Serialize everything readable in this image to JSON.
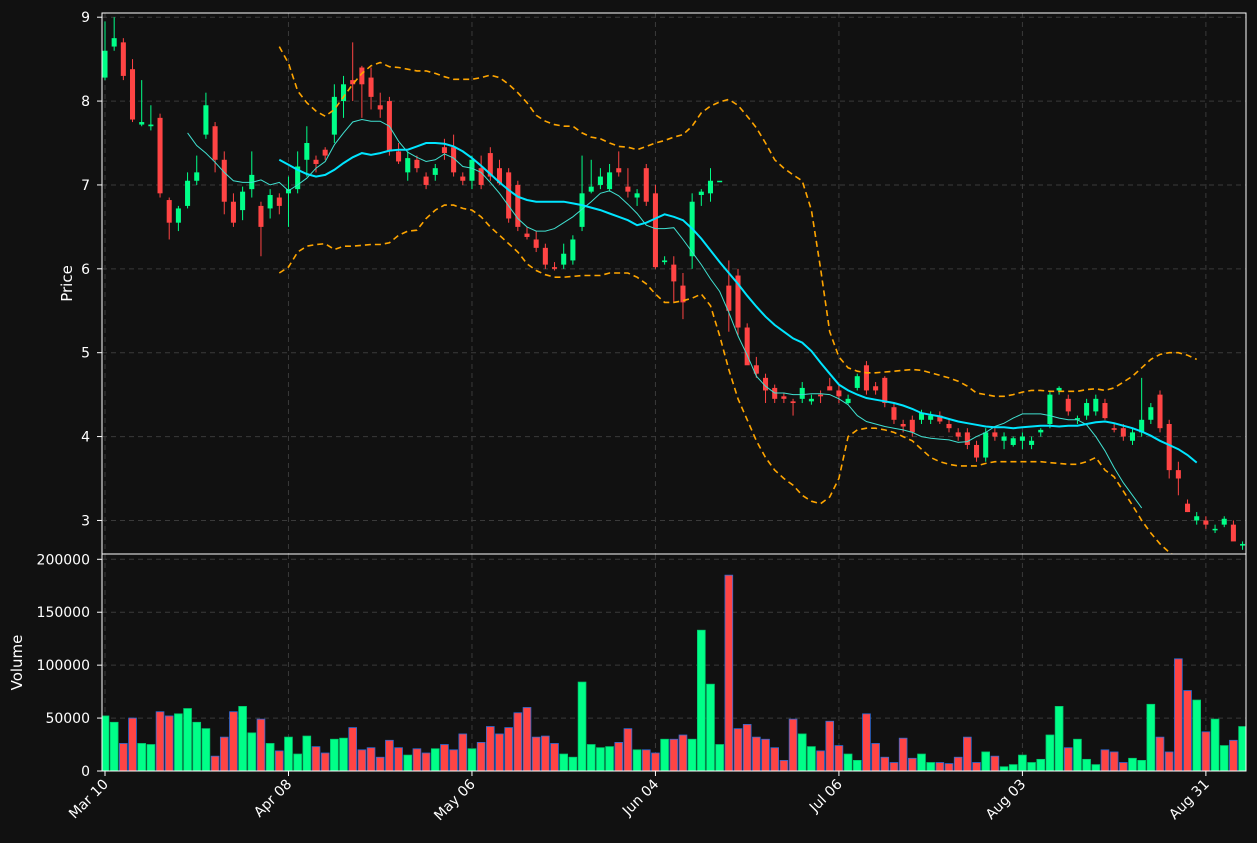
{
  "chart_data": {
    "type": "candlestick",
    "background": "#111111",
    "colors": {
      "up": "#00ff88",
      "down": "#ff4444",
      "ma_short": "#40e0d0",
      "ma_long": "#00e5ff",
      "bands": "#ffa500"
    },
    "grid": true,
    "price_panel": {
      "ylabel": "Price",
      "ylim": [
        2.6,
        9.05
      ],
      "yticks": [
        3,
        4,
        5,
        6,
        7,
        8,
        9
      ]
    },
    "volume_panel": {
      "ylabel": "Volume",
      "ylim": [
        0,
        205000
      ],
      "yticks": [
        0,
        50000,
        100000,
        150000,
        200000
      ]
    },
    "xticks": [
      {
        "label": "Mar 10",
        "index": 0
      },
      {
        "label": "Apr 08",
        "index": 20
      },
      {
        "label": "May 06",
        "index": 40
      },
      {
        "label": "Jun 04",
        "index": 60
      },
      {
        "label": "Jul 06",
        "index": 80
      },
      {
        "label": "Aug 03",
        "index": 100
      },
      {
        "label": "Aug 31",
        "index": 120
      }
    ],
    "ohlc": [
      [
        8.28,
        8.95,
        8.25,
        8.6
      ],
      [
        8.65,
        9.0,
        8.6,
        8.75
      ],
      [
        8.7,
        8.75,
        8.25,
        8.3
      ],
      [
        8.38,
        8.5,
        7.75,
        7.78
      ],
      [
        7.72,
        8.25,
        7.7,
        7.75
      ],
      [
        7.7,
        7.95,
        7.65,
        7.72
      ],
      [
        7.8,
        7.85,
        6.85,
        6.9
      ],
      [
        6.82,
        6.85,
        6.35,
        6.55
      ],
      [
        6.55,
        6.75,
        6.45,
        6.72
      ],
      [
        6.75,
        7.15,
        6.72,
        7.05
      ],
      [
        7.05,
        7.35,
        7.0,
        7.15
      ],
      [
        7.6,
        8.1,
        7.55,
        7.95
      ],
      [
        7.7,
        7.75,
        7.15,
        7.3
      ],
      [
        7.3,
        7.4,
        6.65,
        6.8
      ],
      [
        6.8,
        6.9,
        6.5,
        6.55
      ],
      [
        6.7,
        6.98,
        6.58,
        6.92
      ],
      [
        6.95,
        7.4,
        6.85,
        7.12
      ],
      [
        6.75,
        6.8,
        6.15,
        6.5
      ],
      [
        6.72,
        6.95,
        6.6,
        6.88
      ],
      [
        6.85,
        6.9,
        6.65,
        6.75
      ],
      [
        6.9,
        7.1,
        6.5,
        6.95
      ],
      [
        6.95,
        7.4,
        6.9,
        7.22
      ],
      [
        7.3,
        7.7,
        7.1,
        7.5
      ],
      [
        7.3,
        7.35,
        7.15,
        7.25
      ],
      [
        7.42,
        7.45,
        7.3,
        7.35
      ],
      [
        7.6,
        8.2,
        7.5,
        8.05
      ],
      [
        8.0,
        8.3,
        7.8,
        8.2
      ],
      [
        8.25,
        8.7,
        8.0,
        8.2
      ],
      [
        8.4,
        8.42,
        7.8,
        8.2
      ],
      [
        8.28,
        8.4,
        7.9,
        8.05
      ],
      [
        7.95,
        8.1,
        7.8,
        7.9
      ],
      [
        8.0,
        8.05,
        7.35,
        7.4
      ],
      [
        7.4,
        7.5,
        7.25,
        7.28
      ],
      [
        7.15,
        7.4,
        7.05,
        7.32
      ],
      [
        7.3,
        7.35,
        7.15,
        7.2
      ],
      [
        7.1,
        7.15,
        6.95,
        7.0
      ],
      [
        7.12,
        7.25,
        7.05,
        7.2
      ],
      [
        7.45,
        7.55,
        7.3,
        7.38
      ],
      [
        7.45,
        7.6,
        7.1,
        7.15
      ],
      [
        7.1,
        7.15,
        7.0,
        7.05
      ],
      [
        7.05,
        7.35,
        6.95,
        7.3
      ],
      [
        7.2,
        7.35,
        6.95,
        7.0
      ],
      [
        7.38,
        7.45,
        7.05,
        7.1
      ],
      [
        7.2,
        7.3,
        7.0,
        7.02
      ],
      [
        7.15,
        7.2,
        6.55,
        6.6
      ],
      [
        7.0,
        7.05,
        6.45,
        6.5
      ],
      [
        6.42,
        6.5,
        6.35,
        6.38
      ],
      [
        6.35,
        6.45,
        6.2,
        6.25
      ],
      [
        6.25,
        6.3,
        6.0,
        6.05
      ],
      [
        6.02,
        6.08,
        5.98,
        6.0
      ],
      [
        6.05,
        6.3,
        6.0,
        6.18
      ],
      [
        6.1,
        6.4,
        6.05,
        6.35
      ],
      [
        6.5,
        7.35,
        6.45,
        6.9
      ],
      [
        6.92,
        7.3,
        6.9,
        6.98
      ],
      [
        7.0,
        7.2,
        6.95,
        7.1
      ],
      [
        6.95,
        7.25,
        6.92,
        7.15
      ],
      [
        7.2,
        7.4,
        7.1,
        7.15
      ],
      [
        6.98,
        7.2,
        6.85,
        6.92
      ],
      [
        6.85,
        6.95,
        6.75,
        6.9
      ],
      [
        7.2,
        7.25,
        6.75,
        6.8
      ],
      [
        6.9,
        7.0,
        6.0,
        6.02
      ],
      [
        6.08,
        6.15,
        6.05,
        6.1
      ],
      [
        6.05,
        6.15,
        5.6,
        5.85
      ],
      [
        5.8,
        5.95,
        5.4,
        5.6
      ],
      [
        6.15,
        6.9,
        6.0,
        6.8
      ],
      [
        6.88,
        6.95,
        6.75,
        6.92
      ],
      [
        6.9,
        7.2,
        6.8,
        7.05
      ],
      [
        7.05,
        7.05,
        7.05,
        7.05
      ],
      [
        5.8,
        6.1,
        5.25,
        5.5
      ],
      [
        5.92,
        6.0,
        5.2,
        5.3
      ],
      [
        5.3,
        5.35,
        4.9,
        4.85
      ],
      [
        4.85,
        4.95,
        4.7,
        4.75
      ],
      [
        4.7,
        4.75,
        4.4,
        4.55
      ],
      [
        4.58,
        4.62,
        4.4,
        4.45
      ],
      [
        4.48,
        4.52,
        4.4,
        4.45
      ],
      [
        4.42,
        4.45,
        4.25,
        4.4
      ],
      [
        4.45,
        4.65,
        4.4,
        4.58
      ],
      [
        4.42,
        4.5,
        4.38,
        4.45
      ],
      [
        4.5,
        4.55,
        4.4,
        4.48
      ],
      [
        4.6,
        4.7,
        4.55,
        4.55
      ],
      [
        4.55,
        4.62,
        4.4,
        4.48
      ],
      [
        4.4,
        4.5,
        4.38,
        4.45
      ],
      [
        4.58,
        4.75,
        4.55,
        4.72
      ],
      [
        4.85,
        4.9,
        4.5,
        4.55
      ],
      [
        4.6,
        4.65,
        4.5,
        4.55
      ],
      [
        4.7,
        4.72,
        4.35,
        4.4
      ],
      [
        4.35,
        4.4,
        4.15,
        4.2
      ],
      [
        4.15,
        4.2,
        4.05,
        4.12
      ],
      [
        4.2,
        4.25,
        4.0,
        4.05
      ],
      [
        4.2,
        4.32,
        4.15,
        4.28
      ],
      [
        4.2,
        4.3,
        4.15,
        4.25
      ],
      [
        4.25,
        4.3,
        4.15,
        4.18
      ],
      [
        4.15,
        4.2,
        4.05,
        4.1
      ],
      [
        4.05,
        4.1,
        3.95,
        4.0
      ],
      [
        4.05,
        4.1,
        3.85,
        3.9
      ],
      [
        3.9,
        3.95,
        3.7,
        3.75
      ],
      [
        3.75,
        4.1,
        3.7,
        4.05
      ],
      [
        4.05,
        4.1,
        3.95,
        4.0
      ],
      [
        3.95,
        4.05,
        3.85,
        4.0
      ],
      [
        3.9,
        4.0,
        3.88,
        3.98
      ],
      [
        3.95,
        4.05,
        3.85,
        4.0
      ],
      [
        3.9,
        4.0,
        3.85,
        3.95
      ],
      [
        4.05,
        4.1,
        4.0,
        4.08
      ],
      [
        4.15,
        4.55,
        4.1,
        4.5
      ],
      [
        4.55,
        4.6,
        4.5,
        4.58
      ],
      [
        4.45,
        4.5,
        4.25,
        4.3
      ],
      [
        4.2,
        4.25,
        4.15,
        4.22
      ],
      [
        4.25,
        4.45,
        4.2,
        4.4
      ],
      [
        4.3,
        4.5,
        4.25,
        4.45
      ],
      [
        4.4,
        4.45,
        4.2,
        4.22
      ],
      [
        4.1,
        4.15,
        4.05,
        4.08
      ],
      [
        4.1,
        4.15,
        3.95,
        4.0
      ],
      [
        3.95,
        4.1,
        3.9,
        4.05
      ],
      [
        4.05,
        4.7,
        4.0,
        4.2
      ],
      [
        4.2,
        4.4,
        4.15,
        4.35
      ],
      [
        4.5,
        4.55,
        4.05,
        4.1
      ],
      [
        4.15,
        4.2,
        3.5,
        3.6
      ],
      [
        3.6,
        3.7,
        3.3,
        3.5
      ],
      [
        3.2,
        3.25,
        3.1,
        3.1
      ],
      [
        3.0,
        3.1,
        2.95,
        3.05
      ],
      [
        3.0,
        3.05,
        2.9,
        2.95
      ],
      [
        2.9,
        2.95,
        2.85,
        2.9
      ],
      [
        2.95,
        3.05,
        2.92,
        3.02
      ],
      [
        2.95,
        3.0,
        2.8,
        2.75
      ],
      [
        2.7,
        2.75,
        2.65,
        2.72
      ]
    ],
    "volume": [
      52000,
      46000,
      26000,
      50000,
      26000,
      25000,
      56000,
      52000,
      54000,
      59000,
      46000,
      40000,
      14000,
      32000,
      56000,
      61000,
      36000,
      49000,
      26000,
      19000,
      32000,
      16000,
      33000,
      23000,
      17000,
      30000,
      31000,
      41000,
      20000,
      22000,
      13000,
      29000,
      22000,
      15000,
      21000,
      17000,
      21000,
      25000,
      20000,
      35000,
      21000,
      27000,
      42000,
      35000,
      41000,
      55000,
      60000,
      32000,
      33000,
      26000,
      16000,
      13000,
      84000,
      25000,
      22000,
      23000,
      27000,
      40000,
      20000,
      20000,
      17000,
      30000,
      30000,
      34000,
      30000,
      133000,
      82000,
      25000,
      185000,
      40000,
      44000,
      32000,
      30000,
      22000,
      10000,
      49000,
      35000,
      23000,
      19000,
      47000,
      24000,
      16000,
      10000,
      54000,
      26000,
      13000,
      8000,
      31000,
      12000,
      16000,
      8000,
      8000,
      7000,
      13000,
      32000,
      8000,
      18000,
      14000,
      4000,
      6000,
      15000,
      8000,
      11000,
      34000,
      61000,
      22000,
      30000,
      11000,
      6000,
      20000,
      18000,
      8000,
      12000,
      10000,
      63000,
      32000,
      18000,
      106000,
      76000,
      67000,
      37000,
      49000,
      24000,
      29000,
      42000,
      25000
    ],
    "series": [
      {
        "name": "",
        "style": "short_ma",
        "start": 9,
        "values": [
          7.62,
          7.47,
          7.38,
          7.27,
          7.15,
          7.05,
          7.03,
          7.03,
          7.06,
          7.0,
          7.03,
          6.93,
          7.0,
          7.08,
          7.2,
          7.28,
          7.48,
          7.62,
          7.75,
          7.78,
          7.76,
          7.76,
          7.7,
          7.52,
          7.39,
          7.33,
          7.28,
          7.3,
          7.37,
          7.32,
          7.22,
          7.2,
          7.15,
          7.03,
          6.9,
          6.75,
          6.6,
          6.5,
          6.45,
          6.45,
          6.48,
          6.55,
          6.62,
          6.71,
          6.8,
          6.9,
          6.93,
          6.87,
          6.77,
          6.66,
          6.52,
          6.48,
          6.48,
          6.49,
          6.35,
          6.2,
          6.05,
          5.88,
          5.73,
          5.48,
          5.2,
          4.97,
          4.72,
          4.6,
          4.52,
          4.52,
          4.5,
          4.5,
          4.51,
          4.51,
          4.5,
          4.45,
          4.38,
          4.25,
          4.18,
          4.15,
          4.12,
          4.1,
          4.08,
          4.05,
          4.0,
          3.98,
          3.97,
          3.96,
          3.93,
          3.94,
          4.0,
          4.05,
          4.12,
          4.16,
          4.22,
          4.27,
          4.27,
          4.27,
          4.25,
          4.22,
          4.2,
          4.2,
          4.14,
          4.0,
          3.83,
          3.63,
          3.45,
          3.3,
          3.15
        ]
      },
      {
        "name": "",
        "style": "long_ma",
        "start": 19,
        "values": [
          7.3,
          7.24,
          7.18,
          7.13,
          7.1,
          7.12,
          7.18,
          7.26,
          7.33,
          7.38,
          7.36,
          7.38,
          7.41,
          7.42,
          7.42,
          7.46,
          7.5,
          7.5,
          7.49,
          7.46,
          7.4,
          7.32,
          7.23,
          7.13,
          7.03,
          6.94,
          6.86,
          6.82,
          6.8,
          6.8,
          6.8,
          6.8,
          6.78,
          6.76,
          6.73,
          6.7,
          6.66,
          6.62,
          6.58,
          6.52,
          6.55,
          6.6,
          6.65,
          6.62,
          6.58,
          6.48,
          6.36,
          6.22,
          6.08,
          5.95,
          5.82,
          5.68,
          5.55,
          5.43,
          5.33,
          5.25,
          5.17,
          5.12,
          5.02,
          4.88,
          4.75,
          4.62,
          4.55,
          4.5,
          4.46,
          4.44,
          4.42,
          4.4,
          4.37,
          4.33,
          4.28,
          4.26,
          4.24,
          4.21,
          4.18,
          4.16,
          4.14,
          4.12,
          4.11,
          4.11,
          4.1,
          4.11,
          4.12,
          4.13,
          4.13,
          4.12,
          4.13,
          4.13,
          4.15,
          4.17,
          4.18,
          4.16,
          4.13,
          4.1,
          4.06,
          4.01,
          3.95,
          3.9,
          3.85,
          3.78,
          3.69
        ]
      },
      {
        "name": "",
        "style": "upper_band",
        "start": 19,
        "values": [
          8.65,
          8.45,
          8.12,
          7.98,
          7.88,
          7.82,
          7.9,
          8.05,
          8.2,
          8.33,
          8.42,
          8.46,
          8.41,
          8.4,
          8.38,
          8.36,
          8.36,
          8.33,
          8.29,
          8.26,
          8.26,
          8.26,
          8.28,
          8.31,
          8.28,
          8.2,
          8.1,
          7.98,
          7.83,
          7.76,
          7.72,
          7.7,
          7.7,
          7.62,
          7.57,
          7.55,
          7.5,
          7.46,
          7.45,
          7.42,
          7.46,
          7.5,
          7.53,
          7.57,
          7.6,
          7.7,
          7.86,
          7.94,
          7.99,
          8.02,
          7.95,
          7.82,
          7.68,
          7.5,
          7.3,
          7.2,
          7.12,
          7.05,
          6.7,
          6.0,
          5.25,
          4.95,
          4.82,
          4.78,
          4.76,
          4.76,
          4.77,
          4.78,
          4.79,
          4.8,
          4.79,
          4.76,
          4.73,
          4.7,
          4.66,
          4.6,
          4.52,
          4.5,
          4.48,
          4.48,
          4.5,
          4.53,
          4.55,
          4.55,
          4.54,
          4.54,
          4.54,
          4.54,
          4.56,
          4.57,
          4.55,
          4.58,
          4.65,
          4.72,
          4.82,
          4.92,
          4.98,
          5.0,
          5.0,
          4.97,
          4.92
        ]
      },
      {
        "name": "",
        "style": "lower_band",
        "start": 19,
        "values": [
          5.95,
          6.02,
          6.2,
          6.27,
          6.29,
          6.3,
          6.23,
          6.27,
          6.27,
          6.28,
          6.29,
          6.29,
          6.31,
          6.4,
          6.45,
          6.46,
          6.6,
          6.7,
          6.76,
          6.76,
          6.72,
          6.7,
          6.62,
          6.5,
          6.4,
          6.3,
          6.2,
          6.06,
          5.98,
          5.93,
          5.9,
          5.9,
          5.91,
          5.92,
          5.92,
          5.92,
          5.95,
          5.95,
          5.95,
          5.9,
          5.82,
          5.7,
          5.6,
          5.6,
          5.62,
          5.65,
          5.7,
          5.56,
          5.2,
          4.8,
          4.45,
          4.2,
          3.95,
          3.75,
          3.6,
          3.5,
          3.42,
          3.3,
          3.23,
          3.2,
          3.28,
          3.5,
          4.0,
          4.08,
          4.1,
          4.1,
          4.08,
          4.05,
          4.0,
          3.95,
          3.85,
          3.75,
          3.7,
          3.67,
          3.65,
          3.65,
          3.65,
          3.68,
          3.7,
          3.7,
          3.7,
          3.7,
          3.7,
          3.7,
          3.69,
          3.68,
          3.67,
          3.67,
          3.7,
          3.75,
          3.6,
          3.52,
          3.35,
          3.18,
          3.0,
          2.85,
          2.72,
          2.62,
          2.55,
          2.5,
          2.45
        ]
      }
    ]
  }
}
